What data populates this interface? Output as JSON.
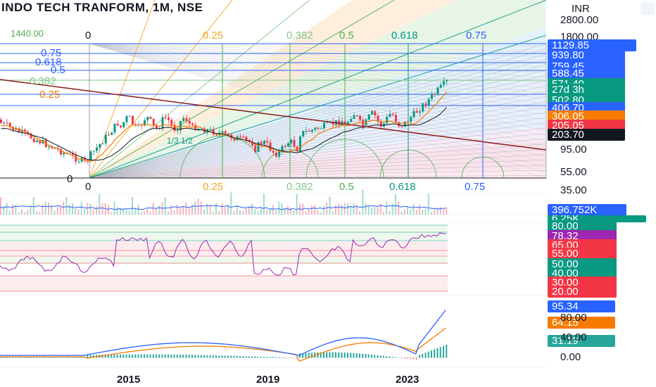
{
  "header": {
    "title": "INDO TECH TRANFORM, 1M, NSE",
    "currency": "INR"
  },
  "price_axis": [
    "2800.00",
    "1800.00",
    "95.00",
    "55.00",
    "35.00"
  ],
  "price_tags": [
    {
      "text": "1129.85",
      "color": "#2962ff"
    },
    {
      "text": "939.80",
      "color": "#2962ff"
    },
    {
      "text": "759.45",
      "color": "#2962ff"
    },
    {
      "text": "588.45",
      "color": "#2962ff"
    },
    {
      "text": "571.40",
      "color": "#089981"
    },
    {
      "text": "27d 3h",
      "color": "#089981"
    },
    {
      "text": "502.80",
      "color": "#089981"
    },
    {
      "text": "406.70",
      "color": "#2962ff"
    },
    {
      "text": "306.05",
      "color": "#f57c00"
    },
    {
      "text": "205.05",
      "color": "#f23645"
    },
    {
      "text": "203.70",
      "color": "#131722"
    }
  ],
  "fib_time_labels_top": [
    {
      "text": "0",
      "color": "#131722"
    },
    {
      "text": "0.25",
      "color": "#f5a623"
    },
    {
      "text": "0.382",
      "color": "#81c784"
    },
    {
      "text": "0.5",
      "color": "#4caf50"
    },
    {
      "text": "0.618",
      "color": "#089981"
    },
    {
      "text": "0.75",
      "color": "#2962ff"
    }
  ],
  "fib_time_labels_bottom": [
    {
      "text": "0",
      "color": "#131722"
    },
    {
      "text": "0.25",
      "color": "#f5a623"
    },
    {
      "text": "0.382",
      "color": "#81c784"
    },
    {
      "text": "0.5",
      "color": "#4caf50"
    },
    {
      "text": "0.618",
      "color": "#089981"
    },
    {
      "text": "0.75",
      "color": "#2962ff"
    }
  ],
  "fib_price_labels_left": [
    {
      "text": "1440.00",
      "color": "#4caf50"
    },
    {
      "text": "0.75",
      "color": "#2962ff"
    },
    {
      "text": "0.618",
      "color": "#2962ff"
    },
    {
      "text": "0.5",
      "color": "#2962ff"
    },
    {
      "text": "0.382",
      "color": "#81c784"
    },
    {
      "text": "0.25",
      "color": "#f57c00"
    },
    {
      "text": "0",
      "color": "#131722"
    }
  ],
  "gann_label": "1/3 1/2",
  "volume_panel": {
    "tag": "396.752K",
    "tag_color": "#2962ff",
    "sub_tag": "6.25K",
    "sub_color": "#089981"
  },
  "rsi_panel": {
    "tags": [
      {
        "text": "80.00",
        "color": "#089981"
      },
      {
        "text": "78.32",
        "color": "#9c27b0"
      },
      {
        "text": "65.00",
        "color": "#f23645"
      },
      {
        "text": "55.00",
        "color": "#f23645"
      },
      {
        "text": "50.00",
        "color": "#089981"
      },
      {
        "text": "40.00",
        "color": "#089981"
      },
      {
        "text": "30.00",
        "color": "#f23645"
      },
      {
        "text": "20.00",
        "color": "#f23645"
      }
    ]
  },
  "macd_panel": {
    "tags": [
      {
        "text": "95.34",
        "color": "#2962ff"
      },
      {
        "text": "64.15",
        "color": "#f57c00"
      },
      {
        "text": "31.19",
        "color": "#26a69a"
      }
    ],
    "axis": [
      "80.00",
      "40.00",
      "0.00"
    ]
  },
  "time_axis": [
    "2015",
    "2019",
    "2023"
  ]
}
